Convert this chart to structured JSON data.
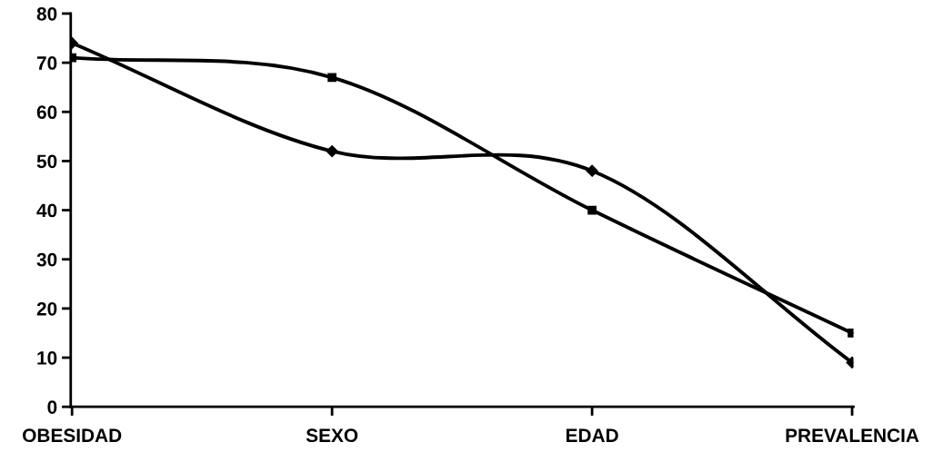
{
  "chart_data": {
    "type": "line",
    "categories": [
      "OBESIDAD",
      "SEXO",
      "EDAD",
      "PREVALENCIA"
    ],
    "series": [
      {
        "color": "#000000",
        "marker": "diamond",
        "values": [
          74,
          52,
          48,
          9
        ]
      },
      {
        "color": "#000000",
        "marker": "square",
        "values": [
          71,
          67,
          40,
          15
        ]
      }
    ],
    "ylim": [
      0,
      80
    ],
    "yticks": [
      0,
      10,
      20,
      30,
      40,
      50,
      60,
      70,
      80
    ],
    "grid": false,
    "legend": false,
    "line_style": "solid"
  }
}
